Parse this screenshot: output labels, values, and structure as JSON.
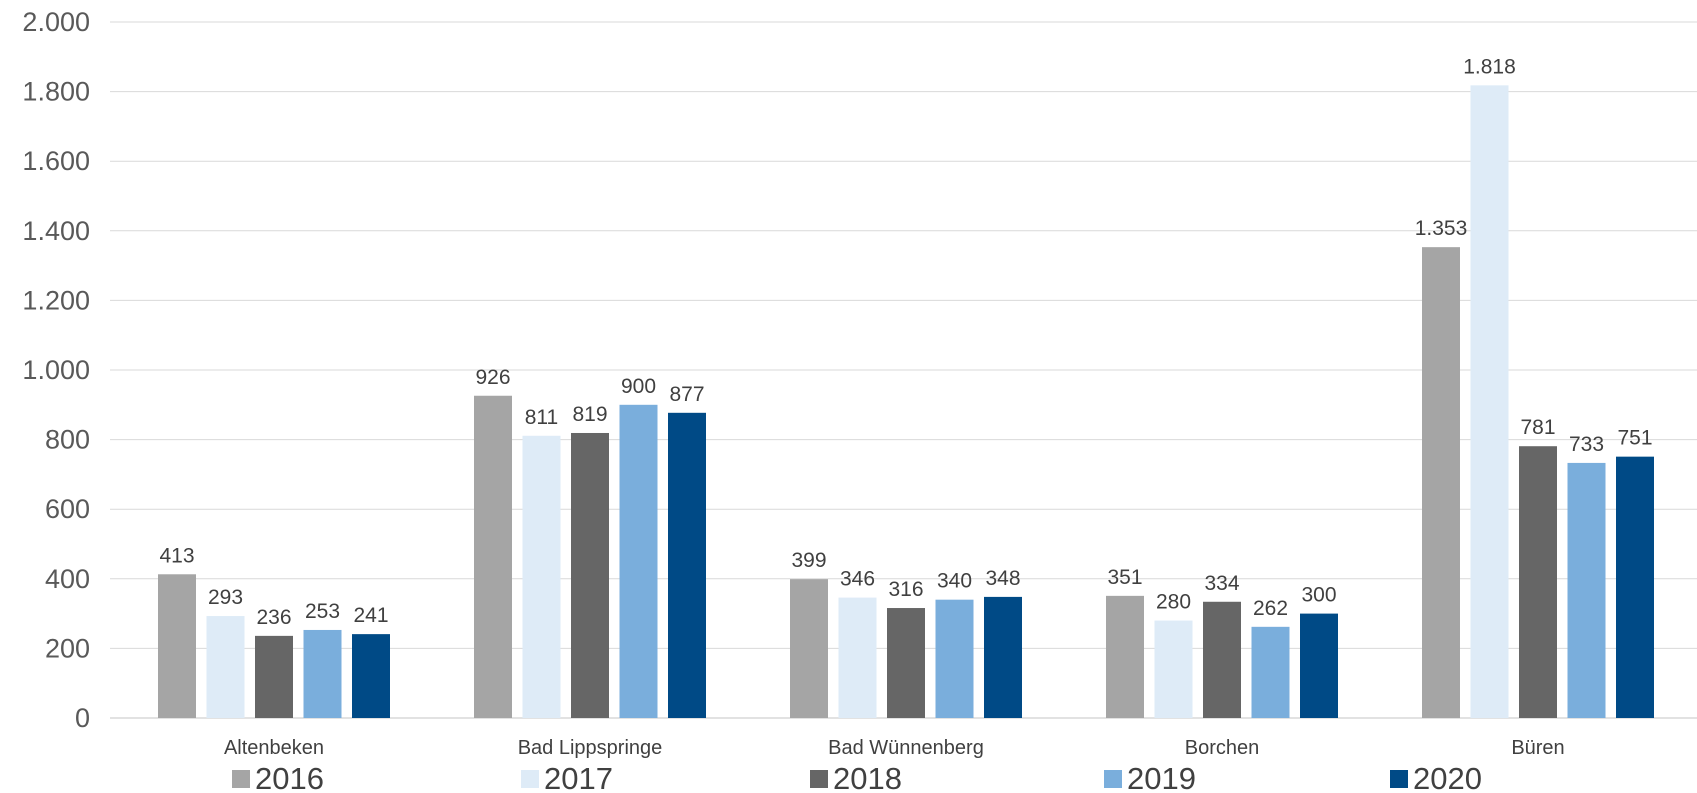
{
  "chart_data": {
    "type": "bar",
    "categories": [
      "Altenbeken",
      "Bad Lippspringe",
      "Bad Wünnenberg",
      "Borchen",
      "Büren"
    ],
    "series": [
      {
        "name": "2016",
        "color": "#a5a5a5",
        "values": [
          413,
          926,
          399,
          351,
          1353
        ],
        "labels": [
          "413",
          "926",
          "399",
          "351",
          "1.353"
        ]
      },
      {
        "name": "2017",
        "color": "#deebf7",
        "values": [
          293,
          811,
          346,
          280,
          1818
        ],
        "labels": [
          "293",
          "811",
          "346",
          "280",
          "1.818"
        ]
      },
      {
        "name": "2018",
        "color": "#666666",
        "values": [
          236,
          819,
          316,
          334,
          781
        ],
        "labels": [
          "236",
          "819",
          "316",
          "334",
          "781"
        ]
      },
      {
        "name": "2019",
        "color": "#7aaedc",
        "values": [
          253,
          900,
          340,
          262,
          733
        ],
        "labels": [
          "253",
          "900",
          "340",
          "262",
          "733"
        ]
      },
      {
        "name": "2020",
        "color": "#004a86",
        "values": [
          241,
          877,
          348,
          300,
          751
        ],
        "labels": [
          "241",
          "877",
          "348",
          "300",
          "751"
        ]
      }
    ],
    "yticks": [
      0,
      200,
      400,
      600,
      800,
      1000,
      1200,
      1400,
      1600,
      1800,
      2000
    ],
    "ytick_labels": [
      "0",
      "200",
      "400",
      "600",
      "800",
      "1.000",
      "1.200",
      "1.400",
      "1.600",
      "1.800",
      "2.000"
    ],
    "ylim": [
      0,
      2000
    ],
    "grid": true,
    "legend_position": "bottom"
  }
}
